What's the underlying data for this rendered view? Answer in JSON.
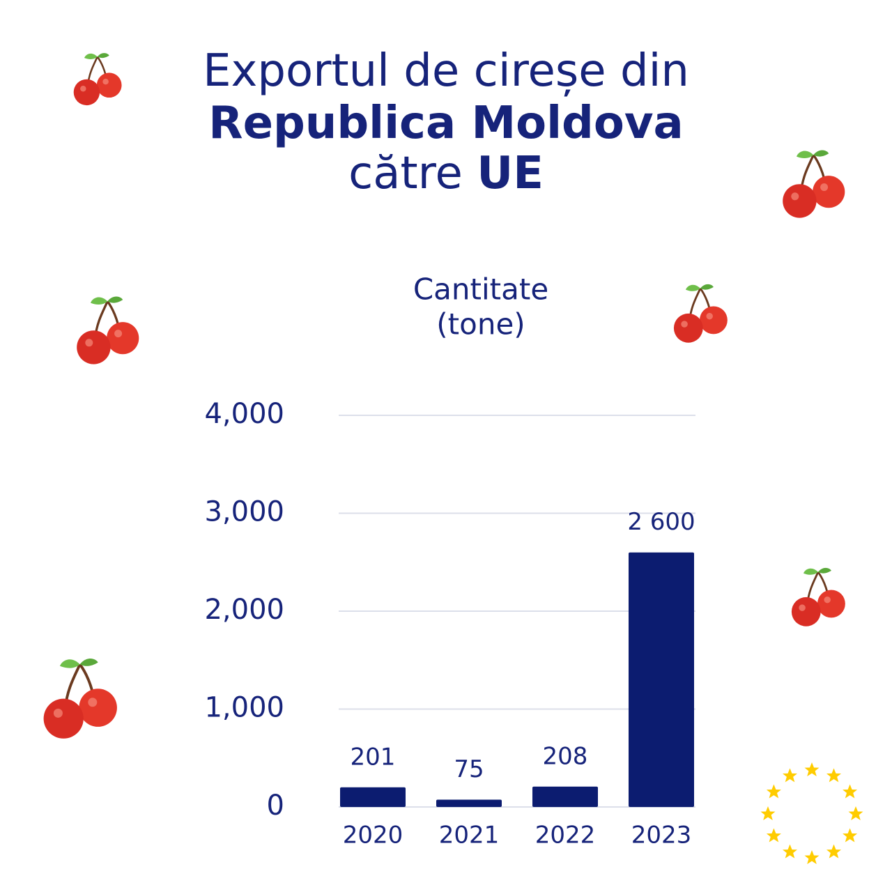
{
  "chart_data": {
    "type": "bar",
    "title_lines": [
      [
        {
          "text": "Exportul de cireșe din",
          "bold": false
        }
      ],
      [
        {
          "text": "Republica Moldova",
          "bold": true
        }
      ],
      [
        {
          "text": "către ",
          "bold": false
        },
        {
          "text": "UE",
          "bold": true
        }
      ]
    ],
    "ylabel_lines": [
      "Cantitate",
      "(tone)"
    ],
    "categories": [
      "2020",
      "2021",
      "2022",
      "2023"
    ],
    "values": [
      201,
      75,
      208,
      2600
    ],
    "value_labels": [
      "201",
      "75",
      "208",
      "2 600"
    ],
    "color": "#0c1c70",
    "ylim": [
      0,
      4000
    ],
    "yticks": [
      0,
      {
        "value": 1000,
        "label": "1,000"
      },
      {
        "value": 2000,
        "label": "2,000"
      },
      {
        "value": 3000,
        "label": "3,000"
      },
      {
        "value": 4000,
        "label": "4,000"
      }
    ],
    "grid": true
  }
}
